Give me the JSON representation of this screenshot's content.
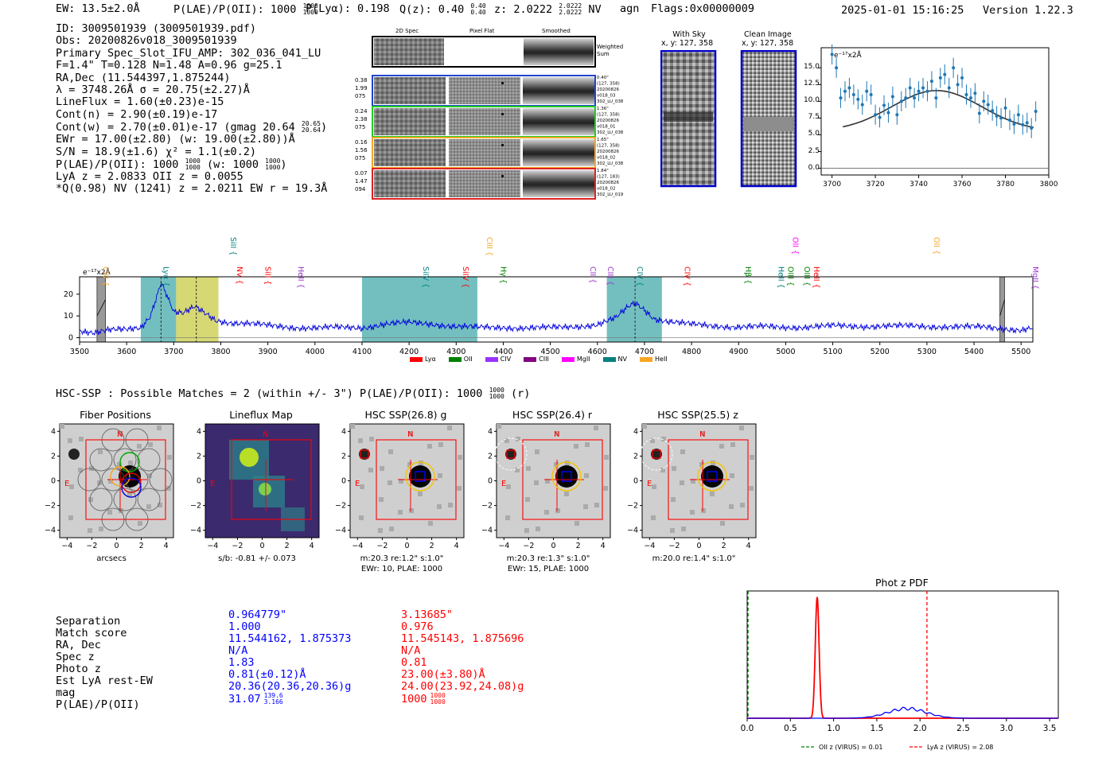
{
  "header": {
    "ew": "EW: 13.5±2.0Å",
    "plae_label": "P(LAE)/P(OII): 1000",
    "plae_hi": "1000",
    "plae_lo": "1000",
    "plya": "P(Lyα): 0.198",
    "qz": "Q(z): 0.40",
    "qz_hi": "0.40",
    "qz_lo": "0.40",
    "z": "z: 2.0222",
    "z_hi": "2.0222",
    "z_lo": "2.0222",
    "z_line": "NV",
    "agn": "agn",
    "flags": "Flags:0x00000009",
    "datetime": "2025-01-01 15:16:25",
    "version": "Version 1.22.3"
  },
  "info": {
    "l1": "ID: 3009501939 (3009501939.pdf)",
    "l2": "Obs: 20200826v018_3009501939",
    "l3": "Primary Spec_Slot_IFU_AMP: 302_036_041_LU",
    "l4": "F=1.4\"  T=0.128  N=1.48  A=0.96  g=25.1",
    "l5": "RA,Dec (11.544397,1.875244)",
    "l6": "λ = 3748.26Å  σ = 20.75(±2.27)Å",
    "l7": "LineFlux = 1.60(±0.23)e-15",
    "l8": "Cont(n) = 2.90(±0.19)e-17",
    "l9": "Cont(w) = 2.70(±0.01)e-17 (gmag 20.64",
    "l9_hi": "20.65",
    "l9_lo": "20.64",
    "l9_end": ")",
    "l10": "EWr = 17.00(±2.80) (w: 19.00(±2.80))Å",
    "l11": "S/N = 18.9(±1.6)  χ² = 1.1(±0.2)",
    "l12": "P(LAE)/P(OII): 1000",
    "l12_hi": "1000",
    "l12_lo": "1000",
    "l12_mid": "(w: 1000",
    "l12_w_hi": "1000",
    "l12_w_lo": "1000",
    "l12_end": ")",
    "l13": "LyA z = 2.0833  OII z = 0.0055",
    "l14": "*Q(0.98) NV  (1241) z = 2.0211  EW r = 19.3Å"
  },
  "cutouts": {
    "col_2d": "2D Spec",
    "col_flat": "Pixel Flat",
    "col_smooth": "Smoothed",
    "weighted": "Weighted",
    "sum": "Sum",
    "rows": [
      {
        "a": "0.38",
        "b": "1.99",
        "c": "075",
        "info": [
          "0.40\"",
          "(127, 358)",
          "20200826",
          "v018_03",
          "302_LU_038"
        ],
        "color": "#2244cc"
      },
      {
        "a": "0.24",
        "b": "2.38",
        "c": "075",
        "info": [
          "1.36\"",
          "(127, 358)",
          "20200826",
          "v018_01",
          "302_LU_038"
        ],
        "color": "#22cc22"
      },
      {
        "a": "0.16",
        "b": "1.56",
        "c": "075",
        "info": [
          "1.65\"",
          "(127, 358)",
          "20200826",
          "v018_02",
          "302_LU_038"
        ],
        "color": "#f5a623"
      },
      {
        "a": "0.07",
        "b": "1.47",
        "c": "094",
        "info": [
          "1.84\"",
          "(127, 183)",
          "20200826",
          "v018_02",
          "302_LU_019"
        ],
        "color": "#dd2222"
      }
    ]
  },
  "sky": {
    "title1": "With Sky",
    "title2": "x, y: 127, 358",
    "clean1": "Clean Image",
    "clean2": "x, y: 127, 358"
  },
  "lines": [
    {
      "name": "CIV",
      "color": "#f5a623",
      "rot": true
    },
    {
      "name": "Lyα",
      "color": "#008080",
      "rot": true
    },
    {
      "name": "SiII",
      "color": "#008080",
      "rot": true
    },
    {
      "name": "NV",
      "color": "#ff0000",
      "rot": true
    },
    {
      "name": "SiII",
      "color": "#ff0000",
      "rot": true
    },
    {
      "name": "HeII",
      "color": "#9933cc",
      "rot": true
    },
    {
      "name": "SiIV",
      "color": "#008080",
      "rot": true
    },
    {
      "name": "SiIV",
      "color": "#ff0000",
      "rot": true
    },
    {
      "name": "CIII",
      "color": "#f5a623",
      "rot": true
    },
    {
      "name": "Hγ",
      "color": "#008000",
      "rot": true
    },
    {
      "name": "CII",
      "color": "#9933cc",
      "rot": true
    },
    {
      "name": "CIII",
      "color": "#9933cc",
      "rot": true
    },
    {
      "name": "CIV",
      "color": "#008080",
      "rot": true
    },
    {
      "name": "CIV",
      "color": "#ff0000",
      "rot": true
    },
    {
      "name": "Hβ",
      "color": "#008000",
      "rot": true
    },
    {
      "name": "HeII",
      "color": "#008080",
      "rot": true
    },
    {
      "name": "OIII",
      "color": "#008000",
      "rot": true
    },
    {
      "name": "OIII",
      "color": "#008000",
      "rot": true
    },
    {
      "name": "HeII",
      "color": "#ff0000",
      "rot": true
    },
    {
      "name": "OII",
      "color": "#ff00ff",
      "rot": true
    },
    {
      "name": "OII",
      "color": "#f5a623",
      "rot": true
    },
    {
      "name": "MgII",
      "color": "#9933cc",
      "rot": true
    }
  ],
  "legend": [
    {
      "name": "Lyα",
      "color": "#ff0000"
    },
    {
      "name": "OII",
      "color": "#008000"
    },
    {
      "name": "CIV",
      "color": "#9933ff"
    },
    {
      "name": "CIII",
      "color": "#800080"
    },
    {
      "name": "MgII",
      "color": "#ff00ff"
    },
    {
      "name": "NV",
      "color": "#008080"
    },
    {
      "name": "HeII",
      "color": "#f5a623"
    }
  ],
  "hsc": {
    "header": "HSC-SSP : Possible Matches = 2 (within +/- 3\")  P(LAE)/P(OII): 1000",
    "h_hi": "1000",
    "h_lo": "1000",
    "h_end": "(r)",
    "panels": [
      {
        "title": "Fiber Positions",
        "cap1": "arcsecs",
        "cap2": ""
      },
      {
        "title": "Lineflux Map",
        "cap1": "s/b: -0.81 +/- 0.073",
        "cap2": ""
      },
      {
        "title": "HSC SSP(26.8) g",
        "cap1": "m:20.3  re:1.2\"  s:1.0\"",
        "cap2": "EWr: 10, PLAE: 1000"
      },
      {
        "title": "HSC SSP(26.4) r",
        "cap1": "m:20.3  re:1.3\"  s:1.0\"",
        "cap2": "EWr: 15, PLAE: 1000"
      },
      {
        "title": "HSC SSP(25.5) z",
        "cap1": "m:20.0  re:1.4\"  s:1.0\"",
        "cap2": ""
      }
    ],
    "compass_n": "N",
    "compass_e": "E"
  },
  "table": {
    "labels": [
      "Separation",
      "Match score",
      "RA, Dec",
      "Spec z",
      "Photo z",
      "Est LyA rest-EW",
      "mag",
      "P(LAE)/P(OII)"
    ],
    "col1": [
      "0.964779\"",
      "1.000",
      "11.544162, 1.875373",
      "N/A",
      "1.83",
      "0.81(±0.12)Å",
      "20.36(20.36,20.36)g",
      "31.07"
    ],
    "col1_plae_hi": "139.6",
    "col1_plae_lo": "3.166",
    "col2": [
      "3.13685\"",
      "0.976",
      "11.545143, 1.875696",
      "N/A",
      "0.81",
      "23.00(±3.80)Å",
      "24.00(23.92,24.08)g",
      "1000"
    ],
    "col2_plae_hi": "1000",
    "col2_plae_lo": "1000"
  },
  "chart_data": [
    {
      "type": "scatter",
      "title": "",
      "yunit": "e⁻¹⁷x2Å",
      "xlim": [
        3695,
        3800
      ],
      "ylim": [
        -1,
        18
      ],
      "xticks": [
        3700,
        3720,
        3740,
        3760,
        3780,
        3800
      ],
      "yticks": [
        0.0,
        2.5,
        5.0,
        7.5,
        10.0,
        12.5,
        15.0
      ],
      "x": [
        3700,
        3702,
        3704,
        3706,
        3708,
        3710,
        3712,
        3714,
        3716,
        3718,
        3720,
        3722,
        3724,
        3726,
        3728,
        3730,
        3732,
        3734,
        3736,
        3738,
        3740,
        3742,
        3744,
        3746,
        3748,
        3750,
        3752,
        3754,
        3756,
        3758,
        3760,
        3762,
        3764,
        3766,
        3768,
        3770,
        3772,
        3774,
        3776,
        3778,
        3780,
        3782,
        3784,
        3786,
        3788,
        3790,
        3792,
        3794
      ],
      "y": [
        17.0,
        15.0,
        10.5,
        11.5,
        12.0,
        11.0,
        10.3,
        9.5,
        11.5,
        11.0,
        8.0,
        7.6,
        9.4,
        8.3,
        10.7,
        8.0,
        10.0,
        10.5,
        12.0,
        10.5,
        11.5,
        12.0,
        11.5,
        13.0,
        10.5,
        13.5,
        14.0,
        12.0,
        15.0,
        12.5,
        13.5,
        11.0,
        10.5,
        11.2,
        8.2,
        10.0,
        9.5,
        8.6,
        7.8,
        7.5,
        9.0,
        7.2,
        6.6,
        8.0,
        6.5,
        6.8,
        6.0,
        8.5
      ],
      "fit_peak": 11.6,
      "fit_center": 3748.3,
      "fit_sigma": 20.75,
      "fit_base": 5.5
    },
    {
      "type": "line",
      "title": "",
      "yunit": "e⁻¹⁷x2Å",
      "xlim": [
        3500,
        5525
      ],
      "ylim": [
        -2,
        28
      ],
      "xticks": [
        3500,
        3600,
        3700,
        3800,
        3900,
        4000,
        4100,
        4200,
        4300,
        4400,
        4500,
        4600,
        4700,
        4800,
        4900,
        5000,
        5100,
        5200,
        5300,
        5400,
        5500
      ],
      "yticks": [
        0,
        10,
        20
      ],
      "line_waves": [
        3545,
        3673,
        3816,
        3830,
        3890,
        3960,
        4225,
        4310,
        4360,
        4390,
        4580,
        4617,
        4680,
        4780,
        4910,
        4980,
        5000,
        5035,
        5055,
        5010,
        5310,
        5520
      ],
      "bands": [
        [
          3630,
          3705,
          "#008b8b"
        ],
        [
          3705,
          3795,
          "#b5b800"
        ],
        [
          4100,
          4345,
          "#008b8b"
        ],
        [
          4620,
          4737,
          "#008b8b"
        ]
      ],
      "vlines": [
        3673,
        3748,
        4680
      ],
      "hatched": [
        [
          3537,
          3555
        ],
        [
          5455,
          5465
        ]
      ],
      "knots_x": [
        3500,
        3530,
        3560,
        3600,
        3630,
        3650,
        3665,
        3673,
        3685,
        3700,
        3720,
        3745,
        3760,
        3790,
        3820,
        3860,
        3900,
        3950,
        4000,
        4050,
        4100,
        4150,
        4200,
        4250,
        4300,
        4350,
        4400,
        4450,
        4500,
        4550,
        4600,
        4640,
        4665,
        4680,
        4700,
        4720,
        4750,
        4800,
        4850,
        4900,
        4950,
        5000,
        5050,
        5100,
        5150,
        5200,
        5250,
        5300,
        5350,
        5400,
        5450,
        5500,
        5525
      ],
      "knots_y": [
        3.5,
        2.5,
        3.5,
        3.5,
        4.5,
        10,
        20,
        26,
        20,
        12,
        11,
        14,
        12,
        8,
        7,
        6.5,
        5.5,
        4.8,
        4.6,
        4.6,
        4.6,
        6.3,
        6.8,
        6.3,
        5.2,
        4.6,
        4.8,
        4.5,
        4.5,
        5.2,
        6,
        9,
        14,
        16,
        13,
        9,
        7.5,
        6,
        5.5,
        5,
        5,
        4.8,
        5,
        5.3,
        5.2,
        5.4,
        5.3,
        5.2,
        5.2,
        4.9,
        4.5,
        3.6,
        4.5
      ]
    },
    {
      "type": "line",
      "title": "Phot z PDF",
      "xlim": [
        0.0,
        3.6
      ],
      "ylim": [
        0,
        1.05
      ],
      "xticks": [
        0.0,
        0.5,
        1.0,
        1.5,
        2.0,
        2.5,
        3.0,
        3.5
      ],
      "series": [
        {
          "name": "red",
          "color": "#ff0000",
          "peak_x": 0.81,
          "peak_h": 1.0,
          "width": 0.022
        },
        {
          "name": "blue",
          "color": "#0000ff",
          "peak_x": 1.85,
          "peak_h": 0.08,
          "width": 0.22
        }
      ],
      "vline_green": 0.01,
      "vline_red": 2.08,
      "legend": [
        "OII z (VIRUS) = 0.01",
        "LyA z (VIRUS) = 2.08"
      ]
    }
  ]
}
